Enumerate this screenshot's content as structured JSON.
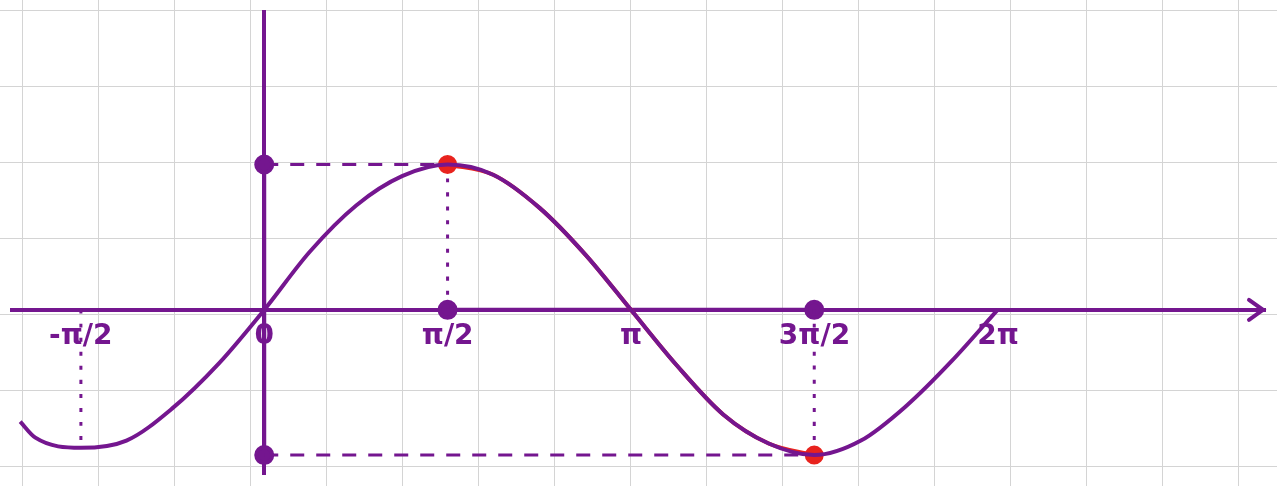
{
  "chart_data": {
    "type": "line",
    "grid": true,
    "tick_labels": "x",
    "xlim": [
      -2.16,
      8.57
    ],
    "ylim": [
      -1.13,
      2.05
    ],
    "xticks": [
      {
        "value": -1.5708,
        "label": "-π/2"
      },
      {
        "value": 0,
        "label": "0"
      },
      {
        "value": 1.5708,
        "label": "π/2"
      },
      {
        "value": 3.1416,
        "label": "π"
      },
      {
        "value": 4.7124,
        "label": "3π/2"
      },
      {
        "value": 6.2832,
        "label": "2π"
      }
    ],
    "series": [
      {
        "color": "#74168f",
        "line_style": "solid",
        "marker": "none",
        "x": [
          -2.09,
          -1.96,
          -1.57,
          -1.18,
          -0.79,
          -0.39,
          0,
          0.39,
          0.79,
          1.18,
          1.57,
          1.96,
          2.36,
          2.75,
          3.14,
          3.53,
          3.93,
          4.32,
          4.71,
          5.11,
          5.5,
          5.89,
          6.28
        ],
        "values": [
          -0.77,
          -0.88,
          -0.95,
          -0.9,
          -0.68,
          -0.37,
          0,
          0.4,
          0.72,
          0.92,
          1.0,
          0.93,
          0.7,
          0.38,
          0,
          -0.38,
          -0.72,
          -0.92,
          -1.0,
          -0.9,
          -0.66,
          -0.35,
          0
        ]
      },
      {
        "color": "#e8231e",
        "line_style": "solid",
        "marker": "none",
        "x": [
          1.57,
          1.96,
          2.36,
          2.75,
          3.14,
          3.53,
          3.93,
          4.32,
          4.71
        ],
        "values": [
          1.0,
          0.93,
          0.7,
          0.38,
          0,
          -0.38,
          -0.72,
          -0.92,
          -1.0
        ]
      },
      {
        "color": "#e8231e",
        "line_style": "none",
        "marker": "circle",
        "x": [
          1.57,
          4.71
        ],
        "values": [
          1.0,
          -1.0
        ]
      },
      {
        "color": "#74168f",
        "line_style": "dashed",
        "marker": "none",
        "x": [
          0,
          1.57
        ],
        "values": [
          1.0,
          1.0
        ]
      },
      {
        "color": "#74168f",
        "line_style": "dotted",
        "marker": "none",
        "x": [
          1.57,
          1.57
        ],
        "values": [
          1.0,
          0
        ]
      },
      {
        "color": "#74168f",
        "line_style": "dashed",
        "marker": "none",
        "x": [
          0,
          4.71
        ],
        "values": [
          -1.0,
          -1.0
        ]
      },
      {
        "color": "#74168f",
        "line_style": "dotted",
        "marker": "none",
        "x": [
          4.71,
          4.71
        ],
        "values": [
          0,
          -1.0
        ]
      },
      {
        "color": "#74168f",
        "line_style": "dotted",
        "marker": "none",
        "x": [
          -1.57,
          -1.57
        ],
        "values": [
          0,
          -0.95
        ]
      },
      {
        "color": "#74168f",
        "line_style": "solid",
        "marker": "circle",
        "x": [
          0,
          0
        ],
        "values": [
          1.0,
          -1.0
        ]
      },
      {
        "color": "#74168f",
        "line_style": "solid",
        "marker": "circle",
        "x": [
          1.57,
          4.71
        ],
        "values": [
          0,
          0
        ]
      }
    ]
  }
}
